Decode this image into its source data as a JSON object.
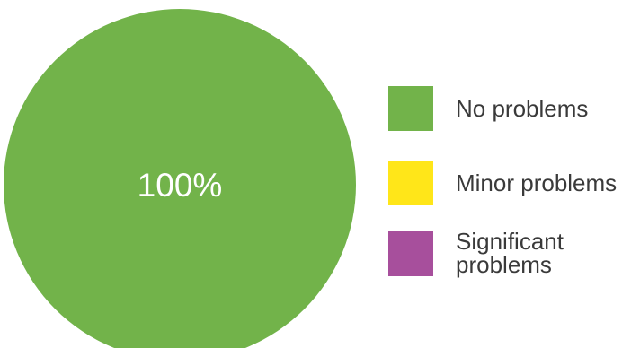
{
  "chart_data": {
    "type": "pie",
    "title": "",
    "slices": [
      {
        "name": "No problems",
        "value": 100,
        "color": "#72b34a",
        "label": "100%"
      },
      {
        "name": "Minor problems",
        "value": 0,
        "color": "#ffe619",
        "label": ""
      },
      {
        "name": "Significant problems",
        "value": 0,
        "color": "#a74f9c",
        "label": ""
      }
    ],
    "legend": {
      "placement": "right",
      "entries": [
        {
          "label": "No problems",
          "color": "#72b34a"
        },
        {
          "label": "Minor problems",
          "color": "#ffe619"
        },
        {
          "label": "Significant problems",
          "color": "#a74f9c"
        }
      ]
    }
  }
}
